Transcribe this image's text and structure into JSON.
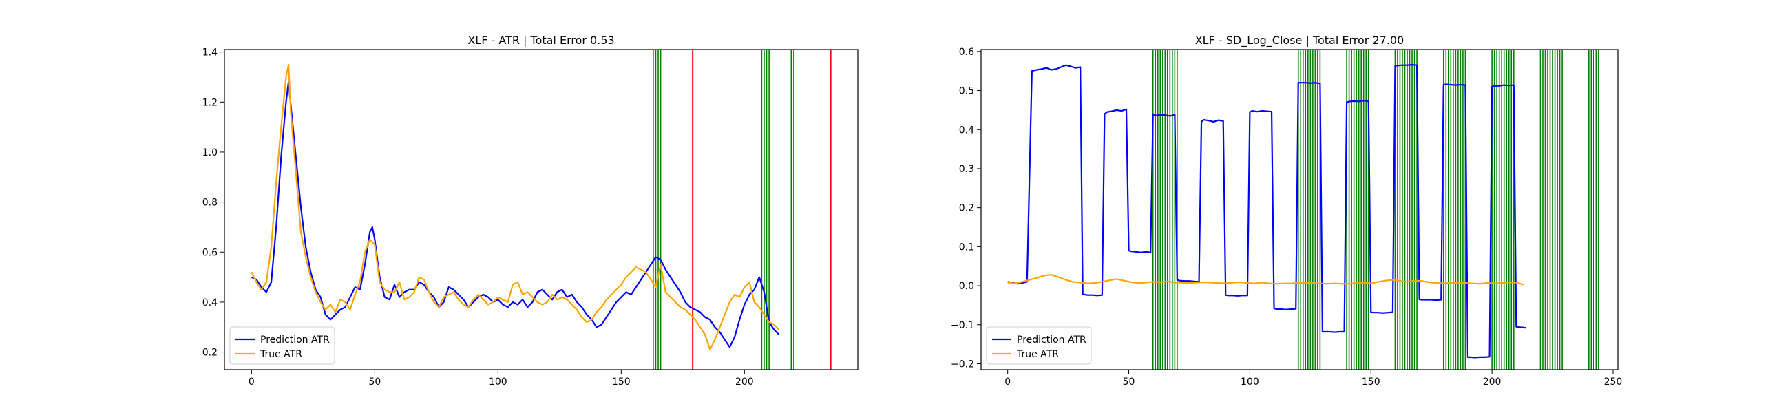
{
  "chart_data": [
    {
      "type": "line",
      "title": "XLF - ATR | Total Error 0.53",
      "xlabel": "",
      "ylabel": "",
      "xlim": [
        -11,
        246
      ],
      "ylim": [
        0.13,
        1.41
      ],
      "xticks": [
        0,
        50,
        100,
        150,
        200
      ],
      "yticks": [
        0.2,
        0.4,
        0.6,
        0.8,
        1.0,
        1.2,
        1.4
      ],
      "ytick_labels": [
        "0.2",
        "0.4",
        "0.6",
        "0.8",
        "1.0",
        "1.2",
        "1.4"
      ],
      "grid": false,
      "legend_position": "lower-left",
      "green_lines": [
        163,
        164,
        165,
        166,
        207,
        208,
        209,
        210,
        219,
        220
      ],
      "red_lines": [
        179,
        235
      ],
      "series": [
        {
          "name": "Prediction ATR",
          "color": "#0000ff",
          "x": [
            0,
            2,
            4,
            6,
            8,
            10,
            12,
            14,
            15,
            16,
            18,
            20,
            22,
            24,
            26,
            28,
            30,
            32,
            34,
            36,
            38,
            40,
            42,
            44,
            46,
            48,
            49,
            50,
            52,
            54,
            56,
            58,
            60,
            62,
            64,
            66,
            68,
            70,
            72,
            74,
            76,
            78,
            80,
            82,
            84,
            86,
            88,
            90,
            92,
            94,
            96,
            98,
            100,
            102,
            104,
            106,
            108,
            110,
            112,
            114,
            116,
            118,
            120,
            122,
            124,
            126,
            128,
            130,
            132,
            134,
            136,
            138,
            140,
            142,
            144,
            146,
            148,
            150,
            152,
            154,
            156,
            158,
            160,
            162,
            164,
            166,
            168,
            170,
            172,
            174,
            176,
            178,
            180,
            182,
            184,
            186,
            188,
            190,
            192,
            194,
            196,
            198,
            200,
            202,
            204,
            206,
            208,
            210,
            212,
            214
          ],
          "y": [
            0.5,
            0.49,
            0.46,
            0.44,
            0.48,
            0.7,
            0.98,
            1.2,
            1.28,
            1.18,
            0.98,
            0.78,
            0.62,
            0.52,
            0.45,
            0.42,
            0.35,
            0.33,
            0.35,
            0.37,
            0.38,
            0.42,
            0.46,
            0.45,
            0.55,
            0.68,
            0.7,
            0.65,
            0.5,
            0.42,
            0.41,
            0.47,
            0.42,
            0.44,
            0.45,
            0.45,
            0.48,
            0.47,
            0.44,
            0.42,
            0.38,
            0.4,
            0.46,
            0.45,
            0.43,
            0.41,
            0.38,
            0.4,
            0.42,
            0.43,
            0.42,
            0.4,
            0.41,
            0.39,
            0.38,
            0.4,
            0.39,
            0.41,
            0.38,
            0.4,
            0.44,
            0.45,
            0.43,
            0.41,
            0.44,
            0.45,
            0.42,
            0.43,
            0.4,
            0.38,
            0.35,
            0.33,
            0.3,
            0.31,
            0.34,
            0.37,
            0.4,
            0.42,
            0.44,
            0.43,
            0.46,
            0.49,
            0.52,
            0.55,
            0.58,
            0.57,
            0.53,
            0.5,
            0.47,
            0.44,
            0.4,
            0.38,
            0.37,
            0.36,
            0.34,
            0.33,
            0.3,
            0.28,
            0.25,
            0.22,
            0.26,
            0.33,
            0.39,
            0.43,
            0.45,
            0.5,
            0.44,
            0.32,
            0.29,
            0.27
          ]
        },
        {
          "name": "True ATR",
          "color": "#ffa500",
          "x": [
            0,
            2,
            4,
            6,
            8,
            10,
            12,
            14,
            15,
            16,
            18,
            20,
            22,
            24,
            26,
            28,
            30,
            32,
            34,
            36,
            38,
            40,
            42,
            44,
            46,
            48,
            50,
            52,
            54,
            56,
            58,
            60,
            62,
            64,
            66,
            68,
            70,
            72,
            74,
            76,
            78,
            80,
            82,
            84,
            86,
            88,
            90,
            92,
            94,
            96,
            98,
            100,
            102,
            104,
            106,
            108,
            110,
            112,
            114,
            116,
            118,
            120,
            122,
            124,
            126,
            128,
            130,
            132,
            134,
            136,
            138,
            140,
            142,
            144,
            146,
            148,
            150,
            152,
            154,
            156,
            158,
            160,
            162,
            164,
            166,
            168,
            170,
            172,
            174,
            176,
            178,
            180,
            182,
            184,
            186,
            188,
            190,
            192,
            194,
            196,
            198,
            200,
            202,
            204,
            206,
            208,
            210,
            212,
            214
          ],
          "y": [
            0.52,
            0.48,
            0.45,
            0.48,
            0.62,
            0.88,
            1.1,
            1.3,
            1.35,
            1.15,
            0.92,
            0.68,
            0.58,
            0.5,
            0.44,
            0.4,
            0.37,
            0.39,
            0.36,
            0.41,
            0.4,
            0.37,
            0.43,
            0.48,
            0.6,
            0.65,
            0.63,
            0.48,
            0.45,
            0.44,
            0.44,
            0.48,
            0.41,
            0.42,
            0.44,
            0.5,
            0.49,
            0.44,
            0.4,
            0.38,
            0.42,
            0.43,
            0.44,
            0.41,
            0.39,
            0.38,
            0.41,
            0.43,
            0.41,
            0.39,
            0.4,
            0.42,
            0.41,
            0.4,
            0.47,
            0.48,
            0.43,
            0.44,
            0.42,
            0.4,
            0.39,
            0.4,
            0.43,
            0.41,
            0.42,
            0.41,
            0.39,
            0.37,
            0.34,
            0.32,
            0.33,
            0.36,
            0.38,
            0.41,
            0.43,
            0.45,
            0.47,
            0.5,
            0.52,
            0.54,
            0.53,
            0.52,
            0.49,
            0.46,
            0.55,
            0.44,
            0.42,
            0.4,
            0.38,
            0.37,
            0.35,
            0.33,
            0.3,
            0.27,
            0.21,
            0.25,
            0.3,
            0.35,
            0.4,
            0.43,
            0.42,
            0.46,
            0.48,
            0.4,
            0.38,
            0.35,
            0.32,
            0.31,
            0.29
          ]
        }
      ]
    },
    {
      "type": "line",
      "title": "XLF - SD_Log_Close | Total Error 27.00",
      "xlabel": "",
      "ylabel": "",
      "xlim": [
        -11,
        252
      ],
      "ylim": [
        -0.215,
        0.605
      ],
      "xticks": [
        0,
        50,
        100,
        150,
        200,
        250
      ],
      "yticks": [
        -0.2,
        -0.1,
        0.0,
        0.1,
        0.2,
        0.3,
        0.4,
        0.5,
        0.6
      ],
      "ytick_labels": [
        "−0.2",
        "−0.1",
        "0.0",
        "0.1",
        "0.2",
        "0.3",
        "0.4",
        "0.5",
        "0.6"
      ],
      "grid": false,
      "legend_position": "lower-left",
      "green_lines": [
        60,
        61,
        62,
        63,
        64,
        65,
        66,
        67,
        68,
        69,
        70,
        120,
        121,
        122,
        123,
        124,
        125,
        126,
        127,
        128,
        129,
        140,
        141,
        142,
        143,
        144,
        145,
        146,
        147,
        148,
        149,
        160,
        161,
        162,
        163,
        164,
        165,
        166,
        167,
        168,
        169,
        180,
        181,
        182,
        183,
        184,
        185,
        186,
        187,
        188,
        189,
        200,
        201,
        202,
        203,
        204,
        205,
        206,
        207,
        208,
        209,
        220,
        221,
        222,
        223,
        224,
        225,
        226,
        227,
        228,
        229,
        240,
        241,
        242,
        243,
        244
      ],
      "red_lines": [],
      "series": [
        {
          "name": "Prediction ATR",
          "color": "#0000ff",
          "x": [
            0,
            2,
            4,
            6,
            8,
            10,
            12,
            14,
            16,
            18,
            20,
            22,
            24,
            26,
            28,
            30,
            31,
            33,
            35,
            37,
            39,
            40,
            41,
            43,
            45,
            47,
            49,
            50,
            51,
            53,
            55,
            57,
            59,
            60,
            61,
            63,
            65,
            67,
            69,
            70,
            71,
            73,
            75,
            77,
            79,
            80,
            81,
            83,
            85,
            87,
            89,
            90,
            91,
            93,
            95,
            97,
            99,
            100,
            101,
            103,
            105,
            107,
            109,
            110,
            111,
            113,
            115,
            117,
            119,
            120,
            121,
            123,
            125,
            127,
            129,
            130,
            131,
            133,
            135,
            137,
            139,
            140,
            141,
            143,
            145,
            147,
            149,
            150,
            151,
            153,
            155,
            157,
            159,
            160,
            161,
            163,
            165,
            167,
            169,
            170,
            171,
            173,
            175,
            177,
            179,
            180,
            181,
            183,
            185,
            187,
            189,
            190,
            191,
            193,
            195,
            197,
            199,
            200,
            201,
            203,
            205,
            207,
            209,
            210,
            211,
            213,
            214
          ],
          "y": [
            0.01,
            0.008,
            0.005,
            0.007,
            0.01,
            0.55,
            0.553,
            0.555,
            0.558,
            0.553,
            0.555,
            0.56,
            0.565,
            0.562,
            0.558,
            0.56,
            -0.022,
            -0.024,
            -0.024,
            -0.025,
            -0.024,
            0.44,
            0.445,
            0.447,
            0.45,
            0.448,
            0.452,
            0.09,
            0.088,
            0.087,
            0.085,
            0.087,
            0.085,
            0.44,
            0.436,
            0.438,
            0.437,
            0.435,
            0.438,
            0.015,
            0.013,
            0.012,
            0.012,
            0.011,
            0.01,
            0.42,
            0.425,
            0.423,
            0.42,
            0.424,
            0.422,
            -0.024,
            -0.025,
            -0.025,
            -0.026,
            -0.025,
            -0.025,
            0.445,
            0.448,
            0.446,
            0.448,
            0.447,
            0.446,
            -0.058,
            -0.06,
            -0.06,
            -0.061,
            -0.06,
            -0.059,
            0.52,
            0.52,
            0.52,
            0.519,
            0.52,
            0.518,
            -0.118,
            -0.118,
            -0.118,
            -0.119,
            -0.118,
            -0.118,
            0.47,
            0.472,
            0.473,
            0.472,
            0.474,
            0.473,
            -0.068,
            -0.069,
            -0.069,
            -0.07,
            -0.069,
            -0.068,
            0.563,
            0.564,
            0.565,
            0.565,
            0.566,
            0.565,
            -0.035,
            -0.036,
            -0.036,
            -0.036,
            -0.037,
            -0.036,
            0.515,
            0.516,
            0.515,
            0.514,
            0.515,
            0.514,
            -0.183,
            -0.183,
            -0.184,
            -0.183,
            -0.183,
            -0.182,
            0.51,
            0.512,
            0.512,
            0.514,
            0.513,
            0.514,
            -0.105,
            -0.106,
            -0.107,
            -0.108
          ]
        },
        {
          "name": "True ATR",
          "color": "#ffa500",
          "x": [
            0,
            3,
            6,
            9,
            12,
            15,
            18,
            21,
            24,
            27,
            30,
            33,
            36,
            39,
            42,
            45,
            48,
            51,
            54,
            57,
            60,
            63,
            66,
            69,
            72,
            75,
            78,
            81,
            84,
            87,
            90,
            93,
            96,
            99,
            102,
            105,
            108,
            111,
            114,
            117,
            120,
            123,
            126,
            129,
            132,
            135,
            138,
            141,
            144,
            147,
            150,
            153,
            156,
            159,
            162,
            165,
            168,
            171,
            174,
            177,
            180,
            183,
            186,
            189,
            192,
            195,
            198,
            201,
            204,
            207,
            210,
            213
          ],
          "y": [
            0.008,
            0.006,
            0.01,
            0.015,
            0.02,
            0.026,
            0.028,
            0.022,
            0.015,
            0.01,
            0.008,
            0.006,
            0.007,
            0.01,
            0.014,
            0.017,
            0.013,
            0.009,
            0.007,
            0.008,
            0.01,
            0.009,
            0.011,
            0.008,
            0.008,
            0.007,
            0.008,
            0.009,
            0.008,
            0.007,
            0.006,
            0.008,
            0.009,
            0.007,
            0.006,
            0.008,
            0.006,
            0.005,
            0.006,
            0.006,
            0.007,
            0.008,
            0.007,
            0.006,
            0.005,
            0.006,
            0.005,
            0.005,
            0.007,
            0.008,
            0.006,
            0.01,
            0.013,
            0.015,
            0.012,
            0.01,
            0.013,
            0.012,
            0.009,
            0.007,
            0.006,
            0.008,
            0.007,
            0.007,
            0.006,
            0.005,
            0.007,
            0.006,
            0.007,
            0.009,
            0.008,
            0.003
          ]
        }
      ]
    }
  ]
}
